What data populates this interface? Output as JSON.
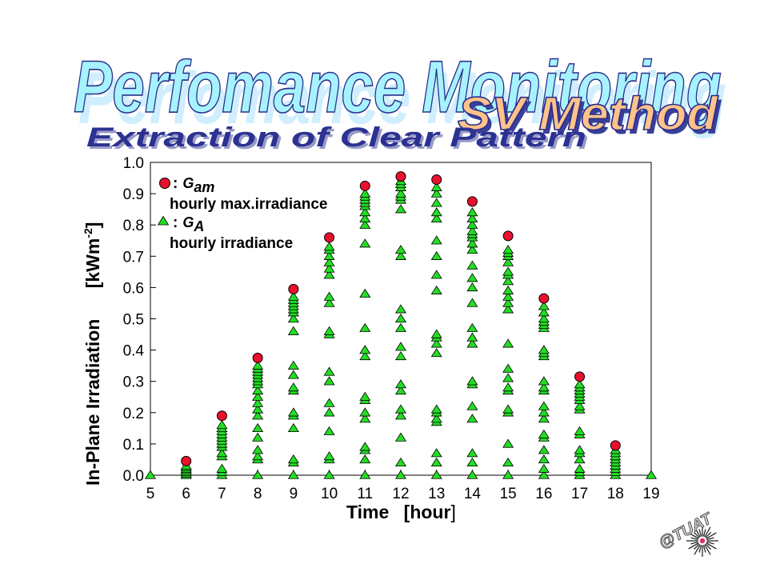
{
  "header": {
    "title_main": "Perfomance Monitoring",
    "title_method": "SV Method",
    "subtitle": "Extraction of Clear Pattern"
  },
  "logo": {
    "text": "@TUAT"
  },
  "legend": {
    "max_symbol_sub": "am",
    "max_desc": "hourly max.irradiance",
    "hourly_symbol_sub": "A",
    "hourly_desc": "hourly irradiance",
    "symbol_letter": "G",
    "colon": ":"
  },
  "colors": {
    "max_marker": "#e8102c",
    "hourly_marker": "#22dd22",
    "marker_outline": "#000000",
    "title_fill": "#a6f3ff",
    "method_fill": "#ffc28a",
    "subtitle_fill": "#2b3291"
  },
  "chart_data": {
    "type": "scatter",
    "title": "",
    "xlabel": "Time [hour]",
    "xlabel_parts": [
      "Time",
      "[hour",
      "]"
    ],
    "ylabel": "In-Plane Irradiation [kWm-2]",
    "ylabel_parts": [
      "In-Plane Irradiation",
      "[kWm",
      "-2",
      "]"
    ],
    "xlim": [
      5,
      19
    ],
    "ylim": [
      0.0,
      1.0
    ],
    "xticks": [
      5,
      6,
      7,
      8,
      9,
      10,
      11,
      12,
      13,
      14,
      15,
      16,
      17,
      18,
      19
    ],
    "yticks": [
      "0.0",
      "0.1",
      "0.2",
      "0.3",
      "0.4",
      "0.5",
      "0.6",
      "0.7",
      "0.8",
      "0.9",
      "1.0"
    ],
    "grid": false,
    "legend_position": "top-left",
    "series": [
      {
        "name": "G_am hourly max.irradiance",
        "marker": "circle",
        "points": [
          [
            6,
            0.045
          ],
          [
            7,
            0.19
          ],
          [
            8,
            0.375
          ],
          [
            9,
            0.595
          ],
          [
            10,
            0.76
          ],
          [
            11,
            0.925
          ],
          [
            12,
            0.955
          ],
          [
            13,
            0.945
          ],
          [
            14,
            0.875
          ],
          [
            15,
            0.765
          ],
          [
            16,
            0.565
          ],
          [
            17,
            0.315
          ],
          [
            18,
            0.095
          ]
        ]
      },
      {
        "name": "G_A hourly irradiance",
        "marker": "triangle",
        "points_by_hour": {
          "5": [
            0.0
          ],
          "6": [
            0.0,
            0.005,
            0.01,
            0.015,
            0.02,
            0.025,
            0.03
          ],
          "7": [
            0.0,
            0.01,
            0.02,
            0.06,
            0.07,
            0.09,
            0.1,
            0.11,
            0.12,
            0.13,
            0.14,
            0.15,
            0.16
          ],
          "8": [
            0.0,
            0.05,
            0.06,
            0.08,
            0.12,
            0.15,
            0.19,
            0.21,
            0.23,
            0.25,
            0.27,
            0.29,
            0.3,
            0.31,
            0.32,
            0.33,
            0.34,
            0.35
          ],
          "9": [
            0.0,
            0.04,
            0.05,
            0.15,
            0.19,
            0.2,
            0.27,
            0.28,
            0.32,
            0.35,
            0.46,
            0.5,
            0.52,
            0.53,
            0.54,
            0.55,
            0.56,
            0.57
          ],
          "10": [
            0.0,
            0.05,
            0.06,
            0.14,
            0.2,
            0.23,
            0.3,
            0.33,
            0.45,
            0.46,
            0.55,
            0.57,
            0.64,
            0.66,
            0.68,
            0.7,
            0.72,
            0.73
          ],
          "11": [
            0.0,
            0.05,
            0.08,
            0.09,
            0.18,
            0.2,
            0.24,
            0.25,
            0.38,
            0.4,
            0.47,
            0.58,
            0.74,
            0.8,
            0.82,
            0.84,
            0.86,
            0.87,
            0.88,
            0.89,
            0.9
          ],
          "12": [
            0.0,
            0.04,
            0.12,
            0.19,
            0.21,
            0.27,
            0.29,
            0.38,
            0.41,
            0.47,
            0.5,
            0.53,
            0.7,
            0.72,
            0.85,
            0.88,
            0.89,
            0.9,
            0.92,
            0.93,
            0.94
          ],
          "13": [
            0.0,
            0.04,
            0.07,
            0.17,
            0.18,
            0.2,
            0.21,
            0.39,
            0.42,
            0.44,
            0.45,
            0.59,
            0.64,
            0.7,
            0.75,
            0.82,
            0.84,
            0.87,
            0.9,
            0.92
          ],
          "14": [
            0.0,
            0.04,
            0.07,
            0.18,
            0.22,
            0.29,
            0.3,
            0.42,
            0.44,
            0.47,
            0.55,
            0.6,
            0.63,
            0.67,
            0.72,
            0.74,
            0.76,
            0.77,
            0.78,
            0.8,
            0.82,
            0.84
          ],
          "15": [
            0.0,
            0.04,
            0.1,
            0.2,
            0.21,
            0.27,
            0.28,
            0.31,
            0.34,
            0.42,
            0.53,
            0.55,
            0.57,
            0.59,
            0.62,
            0.64,
            0.65,
            0.68,
            0.7,
            0.71,
            0.72
          ],
          "16": [
            0.0,
            0.02,
            0.05,
            0.08,
            0.12,
            0.13,
            0.18,
            0.2,
            0.22,
            0.27,
            0.28,
            0.3,
            0.38,
            0.39,
            0.4,
            0.47,
            0.48,
            0.49,
            0.5,
            0.52,
            0.54
          ],
          "17": [
            0.0,
            0.01,
            0.02,
            0.05,
            0.07,
            0.08,
            0.13,
            0.14,
            0.21,
            0.22,
            0.24,
            0.25,
            0.26,
            0.27,
            0.28,
            0.29
          ],
          "18": [
            0.0,
            0.01,
            0.02,
            0.03,
            0.04,
            0.05,
            0.06,
            0.07,
            0.08
          ],
          "19": [
            0.0
          ]
        }
      }
    ]
  }
}
